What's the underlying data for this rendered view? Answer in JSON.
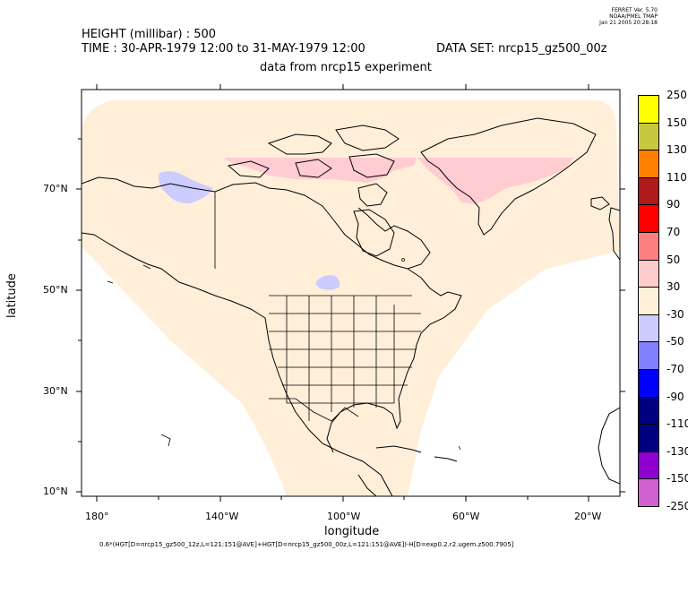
{
  "stamp": {
    "line1": "FERRET Ver. 5.70",
    "line2": "NOAA/PMEL TMAP",
    "line3": "Jan 21 2005 20:28:18"
  },
  "header": {
    "variable": "HEIGHT (millibar) : 500",
    "time": "TIME : 30-APR-1979 12:00 to 31-MAY-1979 12:00",
    "dataset": "DATA SET: nrcp15_gz500_00z",
    "subtitle": "data from nrcp15 experiment"
  },
  "axes": {
    "xlabel": "longitude",
    "ylabel": "latitude",
    "xticks": [
      "180°",
      "140°W",
      "100°W",
      "60°W",
      "20°W"
    ],
    "yticks": [
      "70°N",
      "50°N",
      "30°N",
      "10°N"
    ]
  },
  "colorbar": {
    "labels": [
      "250",
      "150",
      "130",
      "110",
      "90",
      "70",
      "50",
      "30",
      "-30",
      "-50",
      "-70",
      "-90",
      "-110",
      "-130",
      "-150",
      "-250"
    ],
    "colors": [
      "#ffff00",
      "#c8c840",
      "#ff8000",
      "#b01a1a",
      "#ff0000",
      "#ff8080",
      "#ffcccc",
      "#fff0d8",
      "#ccccff",
      "#8080ff",
      "#0000ff",
      "#000080",
      "#000080",
      "#9000d0",
      "#d060d0",
      "#ff00ff"
    ]
  },
  "map": {
    "background_fill": "#ffefd9",
    "positive_anomaly_fill": "#ffccd2",
    "negative_anomaly_fill": "#ccccff"
  },
  "formula": "0.6*(HGT[D=nrcp15_gz500_12z,L=121:151@AVE]+HGT[D=nrcp15_gz500_00z,L=121:151@AVE])-H[D=exp0.2.r2.ugem.z500.7905]"
}
